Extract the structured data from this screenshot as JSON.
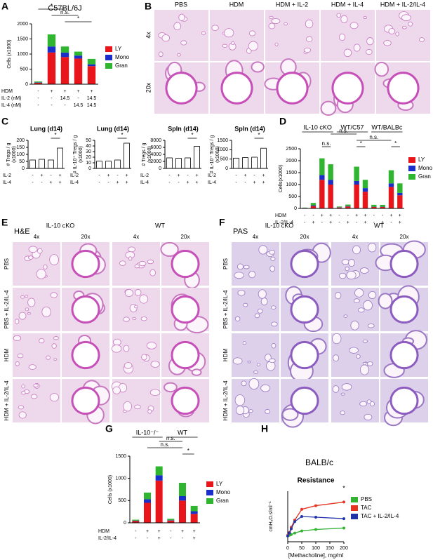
{
  "panel_labels": [
    "A",
    "B",
    "C",
    "D",
    "E",
    "F",
    "G",
    "H"
  ],
  "histology_B": {
    "columns": [
      "PBS",
      "HDM",
      "HDM + IL-2",
      "HDM + IL-4",
      "HDM + IL-2/IL-4"
    ],
    "rows": [
      "4x",
      "20x"
    ]
  },
  "histology_E": {
    "stain": "H&E",
    "groups": [
      "IL-10 cKO",
      "WT"
    ],
    "magnifications": [
      "4x",
      "20x",
      "4x",
      "20x"
    ],
    "rows": [
      "PBS",
      "PBS + IL-2/IL-4",
      "HDM",
      "HDM + IL-2/IL-4"
    ]
  },
  "histology_F": {
    "stain": "PAS",
    "groups": [
      "IL-10 cKO",
      "WT"
    ],
    "magnifications": [
      "4x",
      "20x",
      "4x",
      "20x"
    ],
    "rows": [
      "PBS",
      "PBS + IL-2/IL-4",
      "HDM",
      "HDM + IL-2/IL-4"
    ]
  },
  "chart_data": [
    {
      "type": "stacked_bar",
      "title": "C57BL/6J",
      "y_label": [
        "Cells (x1000)"
      ],
      "ylim": [
        0,
        2000
      ],
      "yticks": [
        0,
        500,
        1000,
        1500,
        2000
      ],
      "series": [
        {
          "name": "LY",
          "color": "#e8161b",
          "values": [
            50,
            1050,
            900,
            850,
            600
          ]
        },
        {
          "name": "Mono",
          "color": "#1a2fc9",
          "values": [
            10,
            200,
            150,
            100,
            60
          ]
        },
        {
          "name": "Gran",
          "color": "#2fb52f",
          "values": [
            30,
            400,
            200,
            130,
            180
          ]
        }
      ],
      "condition_rows": [
        {
          "label": "HDM",
          "values": [
            "-",
            "+",
            "+",
            "+",
            "+"
          ]
        },
        {
          "label": "IL-2 (nM)",
          "values": [
            "-",
            "-",
            "14.5",
            "-",
            "14.5"
          ]
        },
        {
          "label": "IL-4 (nM)",
          "values": [
            "-",
            "-",
            "-",
            "14.5",
            "14.5"
          ]
        }
      ],
      "annotations": [
        "*",
        "n.s.",
        "*"
      ]
    },
    {
      "type": "bar",
      "title": "Lung (d14)",
      "y_label": [
        "# Tregs / g",
        "(x1000)"
      ],
      "color": "#ffffff",
      "ylim": [
        0,
        200
      ],
      "yticks": [
        0,
        50,
        100,
        150,
        200
      ],
      "values": [
        60,
        65,
        60,
        145
      ],
      "condition_rows": [
        {
          "label": "IL-2",
          "values": [
            "-",
            "+",
            "-",
            "+"
          ]
        },
        {
          "label": "IL-4",
          "values": [
            "-",
            "-",
            "+",
            "+"
          ]
        }
      ],
      "annotations": [
        "*"
      ]
    },
    {
      "type": "bar",
      "title": "Lung (d14)",
      "y_label": [
        "# IL-10⁺ Tregs / g",
        "(x1000)"
      ],
      "color": "#ffffff",
      "ylim": [
        0,
        50
      ],
      "yticks": [
        0,
        10,
        20,
        30,
        40,
        50
      ],
      "values": [
        13,
        13,
        15,
        45
      ],
      "condition_rows": [
        {
          "label": "IL-2",
          "values": [
            "-",
            "+",
            "-",
            "+"
          ]
        },
        {
          "label": "IL-4",
          "values": [
            "-",
            "-",
            "+",
            "+"
          ]
        }
      ],
      "annotations": [
        "*"
      ]
    },
    {
      "type": "bar",
      "title": "Spln (d14)",
      "y_label": [
        "# Tregs / g",
        "(x1000)"
      ],
      "color": "#ffffff",
      "ylim": [
        0,
        8000
      ],
      "yticks": [
        0,
        2000,
        4000,
        6000,
        8000
      ],
      "values": [
        3000,
        2900,
        3000,
        6300
      ],
      "condition_rows": [
        {
          "label": "IL-2",
          "values": [
            "-",
            "+",
            "-",
            "+"
          ]
        },
        {
          "label": "IL-4",
          "values": [
            "-",
            "-",
            "+",
            "+"
          ]
        }
      ],
      "annotations": [
        "*"
      ]
    },
    {
      "type": "bar",
      "title": "Spln (d14)",
      "y_label": [
        "# IL-10⁺ Tregs / g",
        "(x1000)"
      ],
      "color": "#ffffff",
      "ylim": [
        0,
        1500
      ],
      "yticks": [
        0,
        500,
        1000,
        1500
      ],
      "values": [
        550,
        580,
        600,
        1080
      ],
      "condition_rows": [
        {
          "label": "IL-2",
          "values": [
            "-",
            "+",
            "-",
            "+"
          ]
        },
        {
          "label": "IL-4",
          "values": [
            "-",
            "-",
            "+",
            "+"
          ]
        }
      ],
      "annotations": [
        "*"
      ]
    },
    {
      "type": "stacked_bar",
      "y_label": [
        "Cells(x1000)"
      ],
      "groups": [
        "IL-10 cKO",
        "WT/C57",
        "WT/BALBc"
      ],
      "ylim": [
        0,
        2500
      ],
      "yticks": [
        0,
        500,
        1000,
        1500,
        2000,
        2500
      ],
      "series": [
        {
          "name": "LY",
          "color": "#e8161b",
          "values": [
            20,
            100,
            1200,
            1000,
            40,
            80,
            1000,
            700,
            60,
            60,
            900,
            550
          ]
        },
        {
          "name": "Mono",
          "color": "#1a2fc9",
          "values": [
            5,
            30,
            200,
            200,
            10,
            20,
            150,
            150,
            10,
            10,
            150,
            100
          ]
        },
        {
          "name": "Gran",
          "color": "#2fb52f",
          "values": [
            10,
            100,
            700,
            650,
            30,
            60,
            600,
            350,
            80,
            80,
            550,
            400
          ]
        }
      ],
      "condition_rows": [
        {
          "label": "HDM",
          "values": [
            "-",
            "-",
            "+",
            "+",
            "-",
            "-",
            "+",
            "+",
            "-",
            "-",
            "+",
            "+"
          ]
        },
        {
          "label": "IL-2/IL-4",
          "values": [
            "-",
            "+",
            "-",
            "+",
            "-",
            "+",
            "-",
            "+",
            "-",
            "+",
            "-",
            "+"
          ]
        }
      ],
      "annotations": [
        "n.s.",
        "n.s.",
        "n.s.",
        "*",
        "*"
      ]
    },
    {
      "type": "stacked_bar",
      "y_label": [
        "Cells (x1000)"
      ],
      "groups": [
        "IL-10⁻/⁻",
        "WT"
      ],
      "ylim": [
        0,
        1500
      ],
      "yticks": [
        0,
        500,
        1000,
        1500
      ],
      "series": [
        {
          "name": "LY",
          "color": "#e8161b",
          "values": [
            40,
            450,
            950,
            50,
            500,
            200
          ]
        },
        {
          "name": "Mono",
          "color": "#1a2fc9",
          "values": [
            10,
            80,
            120,
            10,
            100,
            60
          ]
        },
        {
          "name": "Gran",
          "color": "#2fb52f",
          "values": [
            20,
            150,
            200,
            30,
            300,
            120
          ]
        }
      ],
      "condition_rows": [
        {
          "label": "HDM",
          "values": [
            "-",
            "+",
            "+",
            "-",
            "+",
            "+"
          ]
        },
        {
          "label": "IL-2/IL-4",
          "values": [
            "-",
            "-",
            "+",
            "-",
            "-",
            "+"
          ]
        }
      ],
      "annotations": [
        "n.s.",
        "n.s.",
        "*"
      ]
    },
    {
      "type": "line",
      "supertitle": "BALB/c",
      "title": "Resistance",
      "x_label": "[Methacholine], mg/ml",
      "y_label": [
        "cmH₂O.s/ml⁻¹"
      ],
      "x": [
        0,
        6.25,
        12.5,
        25,
        50,
        100,
        200
      ],
      "xlim": [
        0,
        200
      ],
      "xticks": [
        0,
        50,
        100,
        150,
        200
      ],
      "ylim": [
        0,
        7
      ],
      "series": [
        {
          "name": "PBS",
          "color": "#33b233",
          "values": [
            0.8,
            0.9,
            1.0,
            1.2,
            1.5,
            1.7,
            1.9
          ]
        },
        {
          "name": "TAC",
          "color": "#e63322",
          "values": [
            0.9,
            1.3,
            2.0,
            3.0,
            4.5,
            5.0,
            5.5
          ]
        },
        {
          "name": "TAC + IL-2/IL-4",
          "color": "#2233aa",
          "values": [
            0.8,
            1.2,
            1.8,
            2.8,
            3.5,
            3.4,
            3.2
          ]
        }
      ],
      "annotations": [
        "*"
      ]
    }
  ]
}
